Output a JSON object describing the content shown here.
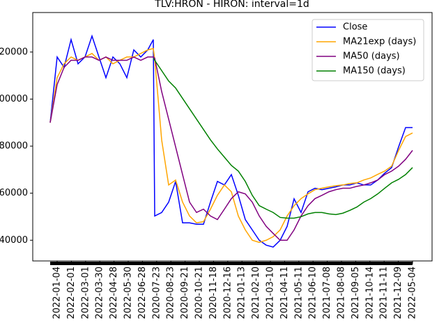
{
  "chart_data": {
    "type": "line",
    "title": "TLV:HRON - HIRON: interval=1d",
    "x": [
      0,
      10,
      20,
      30,
      40,
      50,
      60,
      70,
      80,
      90,
      100,
      110,
      120,
      130,
      140,
      148,
      150,
      160,
      170,
      180,
      190,
      200,
      210,
      220,
      230,
      240,
      250,
      260,
      270,
      280,
      290,
      300,
      310,
      320,
      330,
      340,
      350,
      360,
      370,
      380,
      390,
      400,
      410,
      420,
      430,
      440,
      450,
      460,
      470,
      480,
      490,
      500,
      510,
      520
    ],
    "series": [
      {
        "name": "Close",
        "color": "#0000ff",
        "values": [
          90000,
          117900,
          113500,
          125300,
          115000,
          117900,
          126800,
          117900,
          109100,
          117900,
          115000,
          109100,
          120900,
          117900,
          120900,
          125300,
          50300,
          51800,
          56200,
          65000,
          47400,
          47400,
          46800,
          46800,
          56200,
          65000,
          63500,
          67900,
          59100,
          48800,
          44400,
          40000,
          37900,
          37100,
          40000,
          45900,
          57600,
          51800,
          60600,
          62100,
          61500,
          62100,
          62700,
          63500,
          63500,
          64400,
          63500,
          63500,
          65600,
          68500,
          70900,
          79700,
          87900,
          87900
        ]
      },
      {
        "name": "MA21exp (days)",
        "color": "#ffa500",
        "values": [
          90000,
          109100,
          115000,
          117900,
          116500,
          117900,
          119400,
          116500,
          117900,
          115000,
          116500,
          117900,
          117900,
          119400,
          120900,
          121500,
          117000,
          82600,
          63500,
          65600,
          56200,
          50300,
          47400,
          47900,
          53200,
          59100,
          63500,
          60600,
          50300,
          44400,
          40000,
          39100,
          40000,
          41500,
          44400,
          50300,
          54700,
          57700,
          59700,
          61500,
          62100,
          62700,
          63200,
          63500,
          64100,
          64400,
          65600,
          66500,
          68000,
          69400,
          71500,
          78200,
          84100,
          85600
        ]
      },
      {
        "name": "MA50 (days)",
        "color": "#800080",
        "values": [
          90000,
          106200,
          113500,
          116500,
          116500,
          117900,
          117900,
          116500,
          117900,
          116500,
          116500,
          116500,
          117900,
          116500,
          117900,
          117900,
          117400,
          103200,
          91500,
          79700,
          67900,
          56200,
          51800,
          53200,
          50300,
          48800,
          53200,
          57700,
          60600,
          59700,
          56200,
          50300,
          45900,
          42900,
          40000,
          40000,
          44400,
          50300,
          54700,
          57700,
          59100,
          60600,
          61500,
          62100,
          62100,
          62900,
          63500,
          64400,
          65600,
          67900,
          69400,
          71500,
          74400,
          78200
        ]
      },
      {
        "name": "MA150 (days)",
        "color": "#008000",
        "values": [
          null,
          null,
          null,
          null,
          null,
          null,
          null,
          null,
          null,
          null,
          null,
          null,
          null,
          null,
          null,
          117400,
          116500,
          112100,
          107700,
          104700,
          100300,
          95900,
          91500,
          87100,
          82700,
          78800,
          75300,
          71800,
          69400,
          65000,
          59100,
          54700,
          53200,
          51800,
          49700,
          49400,
          49400,
          50000,
          51200,
          51800,
          51800,
          51200,
          50900,
          51500,
          52700,
          54100,
          56200,
          57700,
          59700,
          62100,
          64400,
          65900,
          67900,
          70900
        ]
      }
    ],
    "xlim": [
      -25,
      548
    ],
    "ylim": [
      31200,
      136800
    ],
    "xticks": [
      {
        "value": 10,
        "label": "2022-01-04"
      },
      {
        "value": 30.4,
        "label": "2022-02-01"
      },
      {
        "value": 50.8,
        "label": "2022-03-01"
      },
      {
        "value": 71.2,
        "label": "2022-03-30"
      },
      {
        "value": 91.6,
        "label": "2022-04-28"
      },
      {
        "value": 112,
        "label": "2022-05-30"
      },
      {
        "value": 132.4,
        "label": "2022-06-28"
      },
      {
        "value": 152.8,
        "label": "2020-07-23"
      },
      {
        "value": 173.2,
        "label": "2020-08-23"
      },
      {
        "value": 193.6,
        "label": "2020-09-21"
      },
      {
        "value": 214,
        "label": "2020-10-21"
      },
      {
        "value": 234.4,
        "label": "2020-11-18"
      },
      {
        "value": 254.8,
        "label": "2020-12-16"
      },
      {
        "value": 275.2,
        "label": "2021-01-13"
      },
      {
        "value": 295.6,
        "label": "2021-02-10"
      },
      {
        "value": 316,
        "label": "2021-03-10"
      },
      {
        "value": 336.4,
        "label": "2021-04-11"
      },
      {
        "value": 356.8,
        "label": "2021-05-11"
      },
      {
        "value": 377.2,
        "label": "2021-06-10"
      },
      {
        "value": 397.6,
        "label": "2021-07-08"
      },
      {
        "value": 418,
        "label": "2021-08-08"
      },
      {
        "value": 438.4,
        "label": "2021-09-05"
      },
      {
        "value": 458.8,
        "label": "2021-10-14"
      },
      {
        "value": 479.2,
        "label": "2021-11-11"
      },
      {
        "value": 499.6,
        "label": "2021-12-09"
      },
      {
        "value": 520,
        "label": "2022-05-04"
      }
    ],
    "yticks": [
      40000,
      60000,
      80000,
      100000,
      120000
    ],
    "legend": "upper right"
  }
}
